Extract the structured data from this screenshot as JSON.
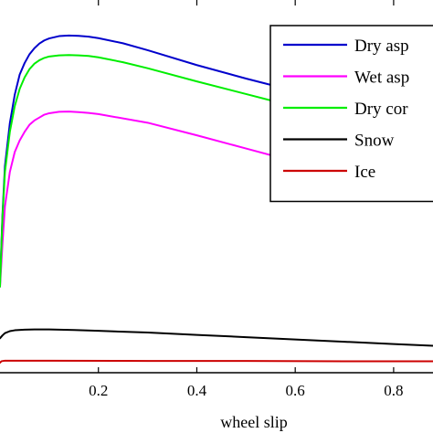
{
  "chart_data": {
    "type": "line",
    "xlabel": "wheel slip",
    "ylabel": "",
    "title": "",
    "xlim": [
      0,
      0.88
    ],
    "ylim": [
      0,
      1.3
    ],
    "x_ticks": [
      0.2,
      0.4,
      0.6,
      0.8
    ],
    "x_tick_labels": [
      "0.2",
      "0.4",
      "0.6",
      "0.8"
    ],
    "grid": false,
    "legend_position": "top-right",
    "series": [
      {
        "name": "Dry asp",
        "color": "#0000cc",
        "x": [
          0,
          0.005,
          0.01,
          0.02,
          0.03,
          0.04,
          0.05,
          0.06,
          0.07,
          0.08,
          0.09,
          0.1,
          0.12,
          0.14,
          0.16,
          0.18,
          0.2,
          0.25,
          0.3,
          0.4,
          0.5,
          0.55,
          0.6,
          0.65,
          0.7,
          0.75,
          0.8,
          0.85,
          0.88
        ],
        "values": [
          0.31,
          0.55,
          0.72,
          0.87,
          0.97,
          1.04,
          1.08,
          1.111,
          1.132,
          1.148,
          1.159,
          1.166,
          1.174,
          1.176,
          1.175,
          1.172,
          1.167,
          1.149,
          1.125,
          1.073,
          1.026,
          1.004,
          0.982,
          0.96,
          0.94,
          0.92,
          0.9,
          0.88,
          0.868
        ]
      },
      {
        "name": "Wet asp",
        "color": "#ff00ff",
        "x": [
          0,
          0.005,
          0.01,
          0.02,
          0.03,
          0.04,
          0.05,
          0.06,
          0.07,
          0.08,
          0.09,
          0.1,
          0.12,
          0.14,
          0.16,
          0.18,
          0.2,
          0.3,
          0.4,
          0.5,
          0.6,
          0.7,
          0.8,
          0.88
        ],
        "values": [
          0.3,
          0.45,
          0.58,
          0.7,
          0.77,
          0.81,
          0.84,
          0.865,
          0.88,
          0.89,
          0.9,
          0.905,
          0.91,
          0.911,
          0.909,
          0.906,
          0.902,
          0.872,
          0.828,
          0.782,
          0.736,
          0.69,
          0.645,
          0.61
        ]
      },
      {
        "name": "Dry cor",
        "color": "#00ee00",
        "x": [
          0,
          0.005,
          0.01,
          0.02,
          0.03,
          0.04,
          0.05,
          0.06,
          0.07,
          0.08,
          0.09,
          0.1,
          0.12,
          0.14,
          0.16,
          0.18,
          0.2,
          0.25,
          0.3,
          0.4,
          0.5,
          0.55,
          0.6
        ],
        "values": [
          0.3,
          0.54,
          0.7,
          0.84,
          0.93,
          0.99,
          1.03,
          1.059,
          1.078,
          1.09,
          1.098,
          1.103,
          1.107,
          1.108,
          1.107,
          1.105,
          1.1,
          1.083,
          1.062,
          1.016,
          0.972,
          0.95,
          0.928
        ]
      },
      {
        "name": "Snow",
        "color": "#000000",
        "x": [
          0,
          0.005,
          0.01,
          0.02,
          0.03,
          0.05,
          0.07,
          0.1,
          0.15,
          0.2,
          0.3,
          0.4,
          0.5,
          0.6,
          0.7,
          0.8,
          0.88
        ],
        "values": [
          0.12,
          0.13,
          0.138,
          0.145,
          0.148,
          0.15,
          0.151,
          0.151,
          0.149,
          0.146,
          0.14,
          0.132,
          0.124,
          0.116,
          0.108,
          0.1,
          0.094
        ]
      },
      {
        "name": "Ice",
        "color": "#cc0000",
        "x": [
          0,
          0.003,
          0.01,
          0.05,
          0.1,
          0.3,
          0.5,
          0.7,
          0.88
        ],
        "values": [
          0.035,
          0.04,
          0.042,
          0.042,
          0.042,
          0.041,
          0.041,
          0.04,
          0.04
        ]
      }
    ]
  }
}
